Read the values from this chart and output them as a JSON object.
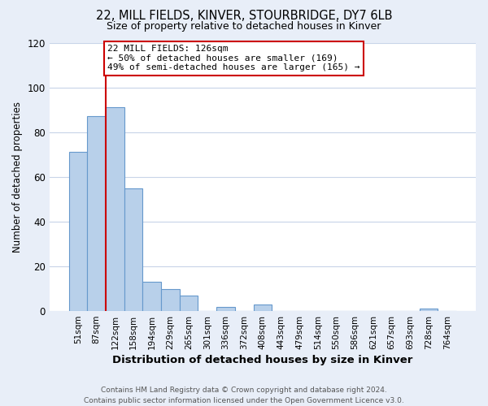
{
  "title1": "22, MILL FIELDS, KINVER, STOURBRIDGE, DY7 6LB",
  "title2": "Size of property relative to detached houses in Kinver",
  "xlabel": "Distribution of detached houses by size in Kinver",
  "ylabel": "Number of detached properties",
  "bin_labels": [
    "51sqm",
    "87sqm",
    "122sqm",
    "158sqm",
    "194sqm",
    "229sqm",
    "265sqm",
    "301sqm",
    "336sqm",
    "372sqm",
    "408sqm",
    "443sqm",
    "479sqm",
    "514sqm",
    "550sqm",
    "586sqm",
    "621sqm",
    "657sqm",
    "693sqm",
    "728sqm",
    "764sqm"
  ],
  "bar_heights": [
    71,
    87,
    91,
    55,
    13,
    10,
    7,
    0,
    2,
    0,
    3,
    0,
    0,
    0,
    0,
    0,
    0,
    0,
    0,
    1,
    0
  ],
  "bar_color": "#b8d0ea",
  "bar_edge_color": "#6699cc",
  "property_line_label": "22 MILL FIELDS: 126sqm",
  "annotation_line1": "← 50% of detached houses are smaller (169)",
  "annotation_line2": "49% of semi-detached houses are larger (165) →",
  "annotation_box_color": "#cc0000",
  "ylim": [
    0,
    120
  ],
  "yticks": [
    0,
    20,
    40,
    60,
    80,
    100,
    120
  ],
  "footer1": "Contains HM Land Registry data © Crown copyright and database right 2024.",
  "footer2": "Contains public sector information licensed under the Open Government Licence v3.0.",
  "bg_color": "#e8eef8",
  "plot_bg_color": "#ffffff",
  "grid_color": "#c8d4e8"
}
